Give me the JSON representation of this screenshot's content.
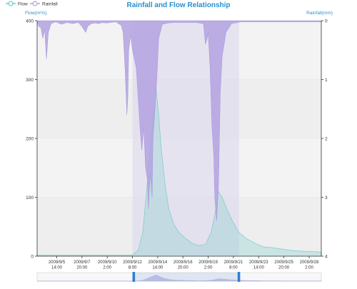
{
  "chart_data": {
    "type": "area",
    "title": "Rainfall and Flow Relationship",
    "left_axis": {
      "label": "Flow(m³/s)",
      "ylim": [
        0,
        400
      ],
      "ticks": [
        0,
        100,
        200,
        300,
        400
      ]
    },
    "right_axis": {
      "label": "Rainfall(mm)",
      "ylim": [
        0,
        4
      ],
      "inverse": true,
      "ticks": [
        0,
        1,
        2,
        3,
        4
      ]
    },
    "x_range": [
      "2009-09-03 20:00",
      "2009-09-29 04:00"
    ],
    "x_tick_labels": [
      {
        "t": "2009-09-05 14:00",
        "lines": [
          "2009/9/5",
          "14:00"
        ]
      },
      {
        "t": "2009-09-07 20:00",
        "lines": [
          "2009/9/7",
          "20:00"
        ]
      },
      {
        "t": "2009-09-10 02:00",
        "lines": [
          "2009/9/10",
          "2:00"
        ]
      },
      {
        "t": "2009-09-12 08:00",
        "lines": [
          "2009/9/12",
          "8:00"
        ]
      },
      {
        "t": "2009-09-14 14:00",
        "lines": [
          "2009/9/14",
          "14:00"
        ]
      },
      {
        "t": "2009-09-16 20:00",
        "lines": [
          "2009/9/16",
          "20:00"
        ]
      },
      {
        "t": "2009-09-19 02:00",
        "lines": [
          "2009/9/19",
          "2:00"
        ]
      },
      {
        "t": "2009-09-21 08:00",
        "lines": [
          "2009/9/21",
          "8:00"
        ]
      },
      {
        "t": "2009-09-23 14:00",
        "lines": [
          "2009/9/23",
          "14:00"
        ]
      },
      {
        "t": "2009-09-25 20:00",
        "lines": [
          "2009/9/25",
          "20:00"
        ]
      },
      {
        "t": "2009-09-28 02:00",
        "lines": [
          "2009/9/28",
          "2:00"
        ]
      }
    ],
    "legend_position": "top-left",
    "grid": true,
    "highlight_ranges": [
      {
        "from": "2009-09-12 08:00",
        "to": "2009-09-21 20:00"
      }
    ],
    "series": [
      {
        "name": "Flow",
        "axis": "left",
        "color": "#6fc8c8",
        "points": [
          [
            "2009-09-03 20:00",
            2
          ],
          [
            "2009-09-08 00:00",
            2
          ],
          [
            "2009-09-12 08:00",
            2
          ],
          [
            "2009-09-12 20:00",
            10
          ],
          [
            "2009-09-13 06:00",
            40
          ],
          [
            "2009-09-13 14:00",
            110
          ],
          [
            "2009-09-13 22:00",
            180
          ],
          [
            "2009-09-14 06:00",
            250
          ],
          [
            "2009-09-14 10:00",
            290
          ],
          [
            "2009-09-14 16:00",
            240
          ],
          [
            "2009-09-14 22:00",
            180
          ],
          [
            "2009-09-15 06:00",
            120
          ],
          [
            "2009-09-15 14:00",
            80
          ],
          [
            "2009-09-16 00:00",
            55
          ],
          [
            "2009-09-16 12:00",
            40
          ],
          [
            "2009-09-17 02:00",
            30
          ],
          [
            "2009-09-17 16:00",
            22
          ],
          [
            "2009-09-18 06:00",
            18
          ],
          [
            "2009-09-18 20:00",
            20
          ],
          [
            "2009-09-19 08:00",
            40
          ],
          [
            "2009-09-19 16:00",
            70
          ],
          [
            "2009-09-20 00:00",
            110
          ],
          [
            "2009-09-20 08:00",
            100
          ],
          [
            "2009-09-20 18:00",
            80
          ],
          [
            "2009-09-21 06:00",
            60
          ],
          [
            "2009-09-21 20:00",
            40
          ],
          [
            "2009-09-22 12:00",
            30
          ],
          [
            "2009-09-23 06:00",
            22
          ],
          [
            "2009-09-24 00:00",
            16
          ],
          [
            "2009-09-25 00:00",
            14
          ],
          [
            "2009-09-26 00:00",
            11
          ],
          [
            "2009-09-27 00:00",
            9
          ],
          [
            "2009-09-28 00:00",
            8
          ],
          [
            "2009-09-29 04:00",
            7
          ]
        ]
      },
      {
        "name": "Rainfall",
        "axis": "right",
        "color": "#b3a2e0",
        "points": [
          [
            "2009-09-03 20:00",
            0.02
          ],
          [
            "2009-09-04 00:00",
            0.1
          ],
          [
            "2009-09-04 04:00",
            0.12
          ],
          [
            "2009-09-04 08:00",
            0.3
          ],
          [
            "2009-09-04 12:00",
            0.15
          ],
          [
            "2009-09-04 16:00",
            0.65
          ],
          [
            "2009-09-04 20:00",
            0.2
          ],
          [
            "2009-09-05 02:00",
            0.05
          ],
          [
            "2009-09-05 12:00",
            0.02
          ],
          [
            "2009-09-06 00:00",
            0.06
          ],
          [
            "2009-09-06 12:00",
            0.03
          ],
          [
            "2009-09-07 00:00",
            0.05
          ],
          [
            "2009-09-07 12:00",
            0.03
          ],
          [
            "2009-09-07 20:00",
            0.1
          ],
          [
            "2009-09-08 04:00",
            0.2
          ],
          [
            "2009-09-08 08:00",
            0.1
          ],
          [
            "2009-09-08 16:00",
            0.05
          ],
          [
            "2009-09-09 00:00",
            0.04
          ],
          [
            "2009-09-09 08:00",
            0.05
          ],
          [
            "2009-09-09 16:00",
            0.03
          ],
          [
            "2009-09-10 00:00",
            0.04
          ],
          [
            "2009-09-10 08:00",
            0.03
          ],
          [
            "2009-09-10 20:00",
            0.02
          ],
          [
            "2009-09-11 08:00",
            0.08
          ],
          [
            "2009-09-11 12:00",
            0.2
          ],
          [
            "2009-09-11 16:00",
            0.8
          ],
          [
            "2009-09-11 20:00",
            1.6
          ],
          [
            "2009-09-11 22:00",
            1.3
          ],
          [
            "2009-09-12 00:00",
            0.5
          ],
          [
            "2009-09-12 04:00",
            0.25
          ],
          [
            "2009-09-12 08:00",
            0.5
          ],
          [
            "2009-09-12 16:00",
            0.8
          ],
          [
            "2009-09-13 00:00",
            1.8
          ],
          [
            "2009-09-13 04:00",
            2.2
          ],
          [
            "2009-09-13 08:00",
            1.8
          ],
          [
            "2009-09-13 12:00",
            2.5
          ],
          [
            "2009-09-13 16:00",
            2.7
          ],
          [
            "2009-09-13 18:00",
            3.2
          ],
          [
            "2009-09-13 22:00",
            2.6
          ],
          [
            "2009-09-14 02:00",
            3.0
          ],
          [
            "2009-09-14 04:00",
            2.0
          ],
          [
            "2009-09-14 08:00",
            1.5
          ],
          [
            "2009-09-14 12:00",
            1.0
          ],
          [
            "2009-09-14 16:00",
            0.3
          ],
          [
            "2009-09-15 00:00",
            0.06
          ],
          [
            "2009-09-15 12:00",
            0.04
          ],
          [
            "2009-09-16 00:00",
            0.03
          ],
          [
            "2009-09-17 00:00",
            0.03
          ],
          [
            "2009-09-18 00:00",
            0.03
          ],
          [
            "2009-09-18 16:00",
            0.05
          ],
          [
            "2009-09-18 20:00",
            0.4
          ],
          [
            "2009-09-19 00:00",
            0.3
          ],
          [
            "2009-09-19 02:00",
            0.2
          ],
          [
            "2009-09-19 06:00",
            0.8
          ],
          [
            "2009-09-19 10:00",
            1.8
          ],
          [
            "2009-09-19 14:00",
            2.3
          ],
          [
            "2009-09-19 16:00",
            3.0
          ],
          [
            "2009-09-19 20:00",
            3.4
          ],
          [
            "2009-09-20 00:00",
            2.8
          ],
          [
            "2009-09-20 04:00",
            1.2
          ],
          [
            "2009-09-20 08:00",
            0.6
          ],
          [
            "2009-09-20 16:00",
            0.2
          ],
          [
            "2009-09-21 04:00",
            0.05
          ],
          [
            "2009-09-22 00:00",
            0.02
          ],
          [
            "2009-09-29 04:00",
            0.02
          ]
        ]
      }
    ],
    "datazoom": {
      "start_percent": 34,
      "end_percent": 71
    }
  }
}
